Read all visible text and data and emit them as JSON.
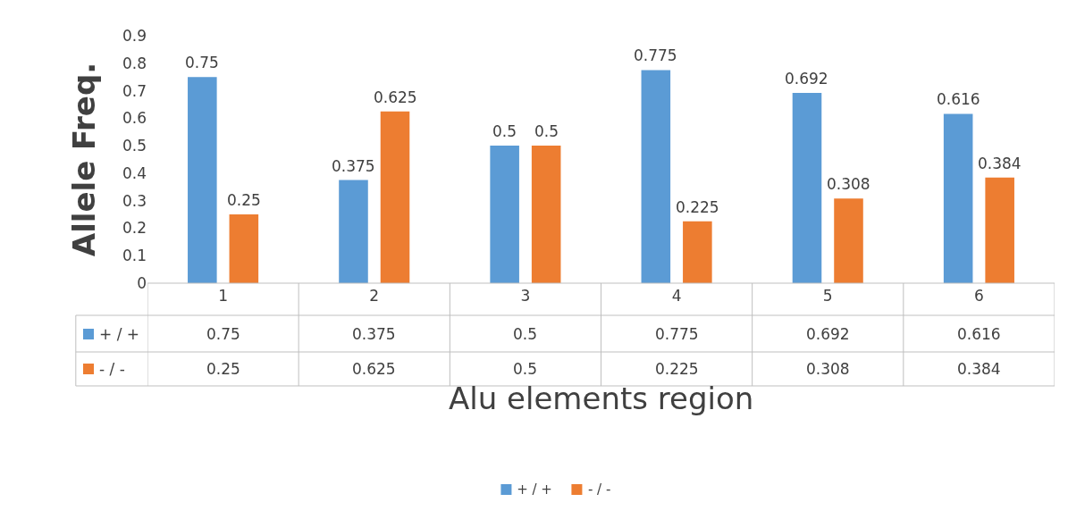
{
  "chart_data": {
    "type": "bar",
    "xlabel": "Alu elements region",
    "ylabel": "Allele Freq.",
    "categories": [
      "1",
      "2",
      "3",
      "4",
      "5",
      "6"
    ],
    "series": [
      {
        "name": "+ / +",
        "color": "#5b9bd5",
        "values": [
          0.75,
          0.375,
          0.5,
          0.775,
          0.692,
          0.616
        ]
      },
      {
        "name": "- / -",
        "color": "#ed7d31",
        "values": [
          0.25,
          0.625,
          0.5,
          0.225,
          0.308,
          0.384
        ]
      }
    ],
    "annotations": [
      "0.75",
      "0.375",
      "0.5",
      "0.775",
      "0.692",
      "0.616",
      "0.25",
      "0.625",
      "0.5",
      "0.225",
      "0.308",
      "0.384"
    ],
    "ylim": [
      0,
      0.9
    ],
    "yticks": [
      0,
      0.1,
      0.2,
      0.3,
      0.4,
      0.5,
      0.6,
      0.7,
      0.8,
      0.9
    ],
    "grid": false,
    "data_labels": true,
    "legend": "bottom"
  }
}
